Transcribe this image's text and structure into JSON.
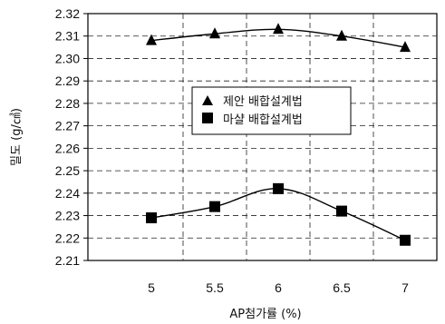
{
  "chart_data": {
    "type": "line",
    "xlabel": "AP첨가률 (%)",
    "ylabel": "밀도 (g/㎤)",
    "x": [
      5,
      5.5,
      6,
      6.5,
      7
    ],
    "x_tick_labels": [
      "5",
      "5.5",
      "6",
      "6.5",
      "7"
    ],
    "ylim": [
      2.21,
      2.32
    ],
    "y_tick_labels": [
      "2.32",
      "2.31",
      "2.30",
      "2.29",
      "2.28",
      "2.27",
      "2.26",
      "2.25",
      "2.24",
      "2.23",
      "2.22",
      "2.21"
    ],
    "grid": true,
    "legend_position": "center",
    "series": [
      {
        "name": "제안 배합설계법",
        "marker": "triangle",
        "color": "#000000",
        "values": [
          2.308,
          2.311,
          2.313,
          2.31,
          2.305
        ]
      },
      {
        "name": "마샬 배합설계법",
        "marker": "square",
        "color": "#000000",
        "values": [
          2.229,
          2.234,
          2.242,
          2.232,
          2.219
        ]
      }
    ]
  }
}
